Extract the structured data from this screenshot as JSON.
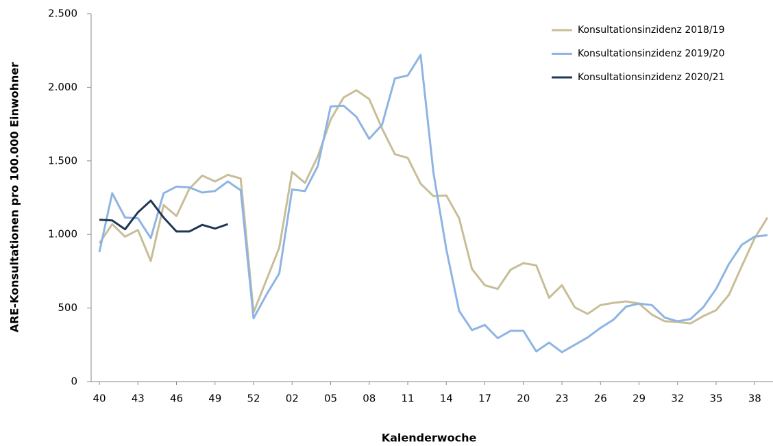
{
  "chart_data": {
    "type": "line",
    "x_label": "Kalenderwoche",
    "y_label": "ARE-Konsultationen pro 100.000 Einwohner",
    "categories": [
      "40",
      null,
      null,
      "43",
      null,
      null,
      "46",
      null,
      null,
      "49",
      null,
      null,
      "52",
      null,
      null,
      "02",
      null,
      null,
      "05",
      null,
      null,
      "08",
      null,
      null,
      "11",
      null,
      null,
      "14",
      null,
      null,
      "17",
      null,
      null,
      "20",
      null,
      null,
      "23",
      null,
      null,
      "26",
      null,
      null,
      "29",
      null,
      null,
      "32",
      null,
      null,
      "35",
      null,
      null,
      "38",
      null
    ],
    "ylim": [
      0,
      2500
    ],
    "yticks": [
      0,
      500,
      {
        "value": 1000,
        "label": "1.000"
      },
      {
        "value": 1500,
        "label": "1.500"
      },
      {
        "value": 2000,
        "label": "2.000"
      },
      {
        "value": 2500,
        "label": "2.500"
      }
    ],
    "legend_position": "upper right",
    "series": [
      {
        "name": "Konsultationsinzidenz 2018/19",
        "color": "#c8bd97",
        "values": [
          940,
          1070,
          985,
          1030,
          820,
          1200,
          1125,
          1310,
          1400,
          1360,
          1405,
          1380,
          470,
          690,
          910,
          1425,
          1350,
          1530,
          1780,
          1930,
          1980,
          1920,
          1720,
          1545,
          1520,
          1345,
          1260,
          1265,
          1110,
          765,
          655,
          630,
          760,
          805,
          790,
          570,
          655,
          505,
          460,
          520,
          535,
          545,
          530,
          455,
          410,
          405,
          395,
          445,
          485,
          590,
          785,
          975,
          1115
        ]
      },
      {
        "name": "Konsultationsinzidenz 2019/20",
        "color": "#8eb4e3",
        "values": [
          880,
          1280,
          1115,
          1110,
          975,
          1280,
          1325,
          1320,
          1285,
          1295,
          1360,
          1300,
          430,
          590,
          735,
          1305,
          1295,
          1465,
          1870,
          1875,
          1800,
          1650,
          1745,
          2060,
          2080,
          2220,
          1420,
          900,
          480,
          350,
          385,
          295,
          345,
          345,
          205,
          265,
          200,
          250,
          300,
          365,
          420,
          510,
          530,
          520,
          435,
          410,
          425,
          505,
          630,
          800,
          930,
          985,
          995
        ]
      },
      {
        "name": "Konsultationsinzidenz 2020/21",
        "color": "#1f3654",
        "values": [
          1100,
          1095,
          1035,
          1150,
          1230,
          1115,
          1020,
          1020,
          1065,
          1040,
          1070,
          null,
          null,
          null,
          null,
          null,
          null,
          null,
          null,
          null,
          null,
          null,
          null,
          null,
          null,
          null,
          null,
          null,
          null,
          null,
          null,
          null,
          null,
          null,
          null,
          null,
          null,
          null,
          null,
          null,
          null,
          null,
          null,
          null,
          null,
          null,
          null,
          null,
          null,
          null,
          null,
          null,
          null
        ]
      }
    ]
  }
}
